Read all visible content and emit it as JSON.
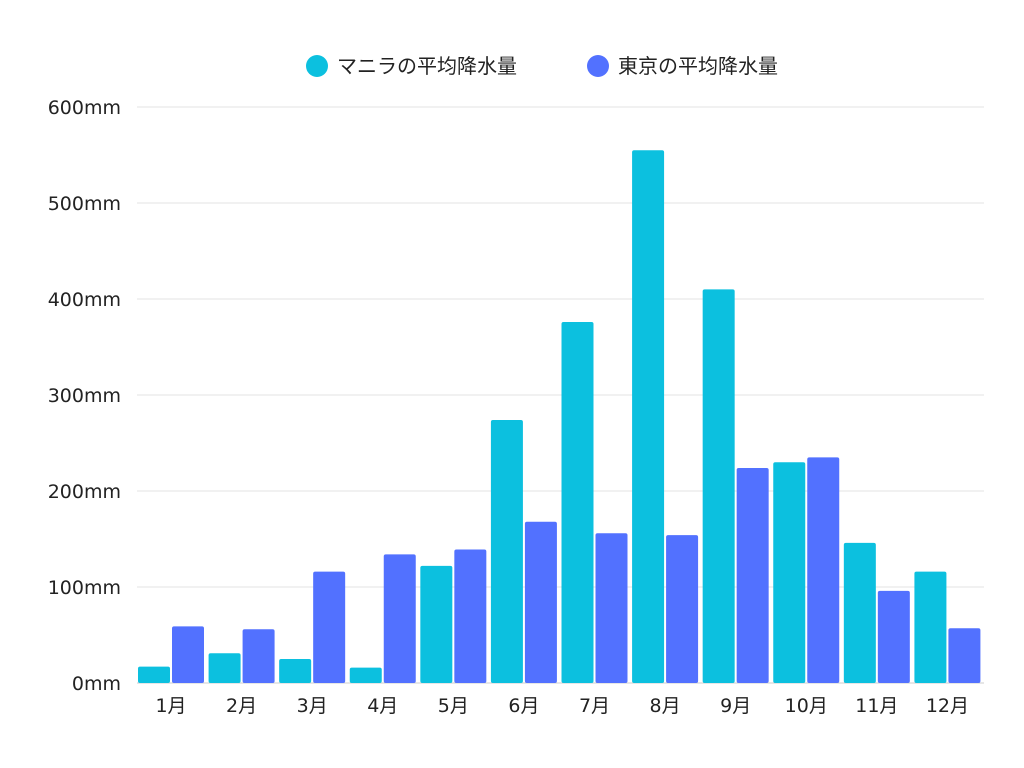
{
  "chart_data": {
    "type": "bar",
    "title": "",
    "xlabel": "",
    "ylabel": "",
    "categories": [
      "1月",
      "2月",
      "3月",
      "4月",
      "5月",
      "6月",
      "7月",
      "8月",
      "9月",
      "10月",
      "11月",
      "12月"
    ],
    "series": [
      {
        "name": "マニラの平均降水量",
        "color": "#0cc0df",
        "values": [
          17,
          31,
          25,
          16,
          122,
          274,
          376,
          555,
          410,
          230,
          146,
          116
        ]
      },
      {
        "name": "東京の平均降水量",
        "color": "#5271ff",
        "values": [
          59,
          56,
          116,
          134,
          139,
          168,
          156,
          154,
          224,
          235,
          96,
          57
        ]
      }
    ],
    "ylim": [
      0,
      600
    ],
    "yticks": [
      0,
      100,
      200,
      300,
      400,
      500,
      600
    ],
    "ytick_suffix": "mm",
    "grid": true,
    "legend_position": "top-center"
  }
}
